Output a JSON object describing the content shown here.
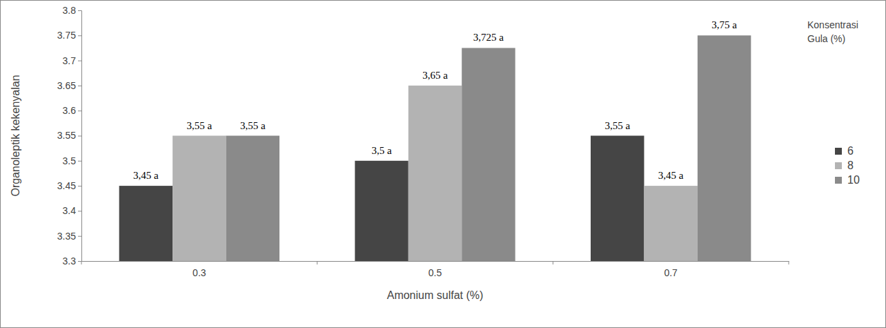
{
  "chart_data": {
    "type": "bar",
    "x_label": "Amonium sulfat (%)",
    "y_label": "Organoleptik kekenyalan",
    "legend_title": "Konsentrasi Gula (%)",
    "categories": [
      "0.3",
      "0.5",
      "0.7"
    ],
    "series": [
      {
        "name": "6",
        "color": "#454545",
        "values": [
          3.45,
          3.5,
          3.55
        ],
        "value_labels": [
          "3,45 a",
          "3,5 a",
          "3,55 a"
        ]
      },
      {
        "name": "8",
        "color": "#b3b3b3",
        "values": [
          3.55,
          3.65,
          3.45
        ],
        "value_labels": [
          "3,55 a",
          "3,65 a",
          "3,45 a"
        ]
      },
      {
        "name": "10",
        "color": "#8a8a8a",
        "values": [
          3.55,
          3.725,
          3.75
        ],
        "value_labels": [
          "3,55 a",
          "3,725 a",
          "3,75 a"
        ]
      }
    ],
    "ylim": [
      3.3,
      3.8
    ],
    "yticks": [
      3.3,
      3.35,
      3.4,
      3.45,
      3.5,
      3.55,
      3.6,
      3.65,
      3.7,
      3.75,
      3.8
    ],
    "grid": false,
    "legend": "right",
    "data_labels": true
  }
}
